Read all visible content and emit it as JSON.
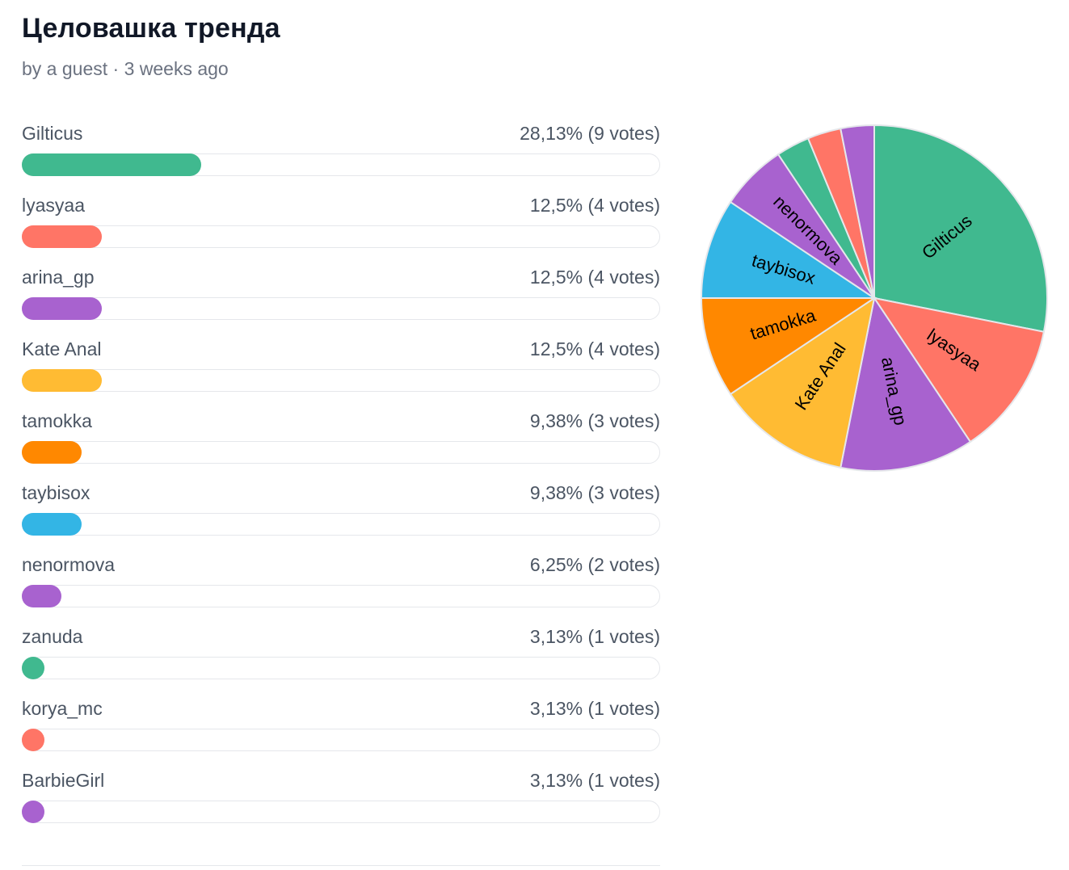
{
  "poll": {
    "title": "Целовашка тренда",
    "meta": "by a guest · 3 weeks ago"
  },
  "chart_data": {
    "type": "pie",
    "categories": [
      "Gilticus",
      "lyasyaa",
      "arina_gp",
      "Kate Anal",
      "tamokka",
      "taybisox",
      "nenormova",
      "zanuda",
      "korya_mc",
      "BarbieGirl"
    ],
    "values": [
      9,
      4,
      4,
      4,
      3,
      3,
      2,
      1,
      1,
      1
    ],
    "percent_labels": [
      "28,13%",
      "12,5%",
      "12,5%",
      "12,5%",
      "9,38%",
      "9,38%",
      "6,25%",
      "3,13%",
      "3,13%",
      "3,13%"
    ],
    "slice_labels_shown": [
      true,
      true,
      true,
      true,
      true,
      true,
      true,
      false,
      false,
      false
    ],
    "colors": [
      "#40b98f",
      "#ff7566",
      "#a862cf",
      "#ffbb33",
      "#ff8800",
      "#33b5e5",
      "#a862cf",
      "#40b98f",
      "#ff7566",
      "#a862cf"
    ]
  },
  "options": [
    {
      "name": "Gilticus",
      "stat": "28,13% (9 votes)",
      "percent": 28.13,
      "color": "#40b98f"
    },
    {
      "name": "lyasyaa",
      "stat": "12,5% (4 votes)",
      "percent": 12.5,
      "color": "#ff7566"
    },
    {
      "name": "arina_gp",
      "stat": "12,5% (4 votes)",
      "percent": 12.5,
      "color": "#a862cf"
    },
    {
      "name": "Kate Anal",
      "stat": "12,5% (4 votes)",
      "percent": 12.5,
      "color": "#ffbb33"
    },
    {
      "name": "tamokka",
      "stat": "9,38% (3 votes)",
      "percent": 9.38,
      "color": "#ff8800"
    },
    {
      "name": "taybisox",
      "stat": "9,38% (3 votes)",
      "percent": 9.38,
      "color": "#33b5e5"
    },
    {
      "name": "nenormova",
      "stat": "6,25% (2 votes)",
      "percent": 6.25,
      "color": "#a862cf"
    },
    {
      "name": "zanuda",
      "stat": "3,13% (1 votes)",
      "percent": 3.13,
      "color": "#40b98f"
    },
    {
      "name": "korya_mc",
      "stat": "3,13% (1 votes)",
      "percent": 3.13,
      "color": "#ff7566"
    },
    {
      "name": "BarbieGirl",
      "stat": "3,13% (1 votes)",
      "percent": 3.13,
      "color": "#a862cf"
    }
  ]
}
